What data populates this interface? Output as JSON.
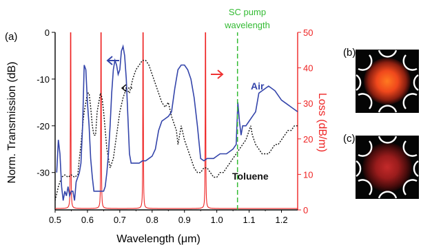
{
  "panel_labels": {
    "a": "(a)",
    "b": "(b)",
    "c": "(c)"
  },
  "annotations": {
    "pump_line1": "SC pump",
    "pump_line2": "wavelength",
    "air_label": "Air",
    "toluene_label": "Toluene"
  },
  "colors": {
    "air": "#3344aa",
    "toluene": "#111111",
    "loss": "#ee2222",
    "pump": "#33bb33",
    "left_arrow": "#3344aa",
    "right_arrow": "#ee3333",
    "dotted_arrow": "#111111"
  },
  "chart_data": {
    "type": "line",
    "xlabel": "Wavelength (μm)",
    "ylabel_left": "Norm. Transmission (dB)",
    "ylabel_right": "Loss (dB/m)",
    "xlim": [
      0.5,
      1.25
    ],
    "ylim_left": [
      -38,
      0
    ],
    "ylim_right": [
      0,
      50
    ],
    "x_ticks": [
      "0.5",
      "0.6",
      "0.7",
      "0.8",
      "0.9",
      "1.0",
      "1.1",
      "1.2"
    ],
    "x_tick_values": [
      0.5,
      0.6,
      0.7,
      0.8,
      0.9,
      1.0,
      1.1,
      1.2
    ],
    "y_left_ticks": [
      "0",
      "-10",
      "-20",
      "-30"
    ],
    "y_left_tick_values": [
      0,
      -10,
      -20,
      -30
    ],
    "y_right_ticks": [
      "0",
      "10",
      "20",
      "30",
      "40",
      "50"
    ],
    "y_right_tick_values": [
      0,
      10,
      20,
      30,
      40,
      50
    ],
    "pump_wavelength": 1.064,
    "series": [
      {
        "name": "Air",
        "axis": "left",
        "x": [
          0.505,
          0.51,
          0.515,
          0.52,
          0.525,
          0.53,
          0.535,
          0.54,
          0.545,
          0.55,
          0.555,
          0.56,
          0.565,
          0.57,
          0.575,
          0.58,
          0.585,
          0.59,
          0.595,
          0.6,
          0.605,
          0.61,
          0.615,
          0.62,
          0.625,
          0.63,
          0.635,
          0.64,
          0.645,
          0.65,
          0.655,
          0.66,
          0.665,
          0.67,
          0.675,
          0.68,
          0.685,
          0.69,
          0.695,
          0.7,
          0.705,
          0.71,
          0.715,
          0.72,
          0.725,
          0.73,
          0.735,
          0.74,
          0.745,
          0.75,
          0.76,
          0.77,
          0.78,
          0.79,
          0.8,
          0.81,
          0.82,
          0.83,
          0.84,
          0.85,
          0.86,
          0.87,
          0.88,
          0.89,
          0.9,
          0.91,
          0.92,
          0.93,
          0.94,
          0.95,
          0.96,
          0.97,
          0.98,
          0.99,
          1.0,
          1.01,
          1.02,
          1.03,
          1.04,
          1.05,
          1.06,
          1.065,
          1.07,
          1.075,
          1.08,
          1.09,
          1.1,
          1.11,
          1.12,
          1.13,
          1.14,
          1.15,
          1.16,
          1.17,
          1.18,
          1.19,
          1.2,
          1.21,
          1.22,
          1.23,
          1.24,
          1.25
        ],
        "values": [
          -30,
          -23,
          -26,
          -33,
          -36,
          -34,
          -35,
          -33,
          -35,
          -34,
          -34,
          -36,
          -32,
          -31,
          -30,
          -28,
          -20,
          -7,
          -8,
          -15,
          -20,
          -27,
          -31,
          -34,
          -34,
          -34,
          -34,
          -34,
          -34,
          -34,
          -33,
          -30,
          -26,
          -20,
          -13,
          -8,
          -6,
          -7,
          -9,
          -8,
          -4,
          -3,
          -5,
          -10,
          -18,
          -26,
          -28,
          -28,
          -28,
          -28,
          -28,
          -27.5,
          -27.5,
          -27,
          -26.5,
          -25,
          -21,
          -19,
          -18.5,
          -18,
          -17,
          -12,
          -8,
          -7,
          -7,
          -8,
          -10,
          -14,
          -20,
          -27,
          -27.5,
          -27,
          -27,
          -27,
          -26.5,
          -26,
          -26,
          -26,
          -25.5,
          -25,
          -24,
          -15,
          -19,
          -22,
          -20,
          -20,
          -19,
          -18,
          -17,
          -13,
          -12.5,
          -12,
          -11.5,
          -12,
          -12.5,
          -13.5,
          -14.5,
          -15,
          -15.5,
          -16,
          -16.5,
          -17
        ]
      },
      {
        "name": "Toluene",
        "axis": "left",
        "x": [
          0.5,
          0.51,
          0.52,
          0.53,
          0.54,
          0.55,
          0.56,
          0.57,
          0.575,
          0.58,
          0.585,
          0.59,
          0.595,
          0.6,
          0.605,
          0.61,
          0.615,
          0.62,
          0.625,
          0.63,
          0.635,
          0.64,
          0.645,
          0.65,
          0.66,
          0.67,
          0.68,
          0.69,
          0.7,
          0.71,
          0.72,
          0.73,
          0.74,
          0.75,
          0.76,
          0.77,
          0.78,
          0.79,
          0.8,
          0.81,
          0.82,
          0.83,
          0.84,
          0.85,
          0.86,
          0.87,
          0.875,
          0.88,
          0.885,
          0.89,
          0.9,
          0.91,
          0.92,
          0.93,
          0.94,
          0.95,
          0.96,
          0.97,
          0.98,
          0.99,
          1.0,
          1.01,
          1.02,
          1.03,
          1.04,
          1.05,
          1.06,
          1.07,
          1.08,
          1.09,
          1.1,
          1.105,
          1.11,
          1.12,
          1.13,
          1.14,
          1.15,
          1.16,
          1.17,
          1.18,
          1.19,
          1.2,
          1.21,
          1.22,
          1.23,
          1.24,
          1.25
        ],
        "values": [
          -36,
          -33,
          -31,
          -30.5,
          -31,
          -30.5,
          -31,
          -30.5,
          -27,
          -24,
          -20,
          -17,
          -15,
          -13,
          -13,
          -16,
          -20,
          -22,
          -22,
          -17,
          -15,
          -13,
          -14,
          -17,
          -25,
          -29,
          -27,
          -22,
          -17,
          -14,
          -12,
          -13,
          -10,
          -8,
          -7,
          -6,
          -6,
          -7,
          -9,
          -11,
          -13,
          -15,
          -16,
          -15,
          -18,
          -20,
          -21,
          -24,
          -22,
          -20,
          -23,
          -25,
          -27,
          -29,
          -30,
          -30,
          -29,
          -29,
          -30,
          -31,
          -31,
          -30,
          -30,
          -29,
          -28,
          -27,
          -26,
          -25,
          -24,
          -23,
          -21,
          -20,
          -22,
          -24,
          -25,
          -26,
          -26,
          -26,
          -25,
          -24,
          -24,
          -23,
          -22,
          -21,
          -21,
          -20,
          -20
        ]
      },
      {
        "name": "",
        "axis": "right",
        "model": "resonances",
        "resonance_centers": [
          0.548,
          0.642,
          0.772,
          0.965
        ],
        "resonance_halfwidth": 0.0035,
        "baseline": 0.4,
        "cap": 52
      }
    ]
  }
}
